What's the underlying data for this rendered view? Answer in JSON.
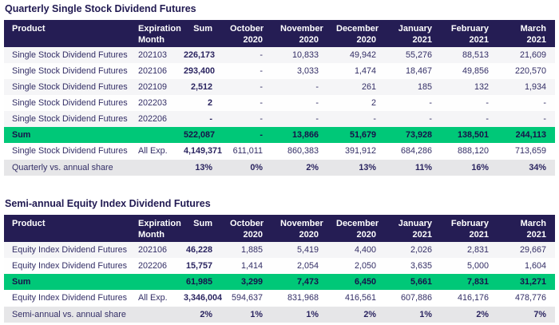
{
  "colors": {
    "header_bg": "#251d54",
    "header_text": "#ffffff",
    "sum_row_bg": "#00c878",
    "body_text": "#332e66",
    "title_text": "#211a52",
    "stripe_bg": "#f5f5f7",
    "share_row_bg": "#e6e6e8"
  },
  "tables": [
    {
      "title": "Quarterly Single Stock Dividend Futures",
      "columns": [
        "Product",
        "Expiration\nMonth",
        "Sum",
        "October\n2020",
        "November\n2020",
        "December\n2020",
        "January\n2021",
        "February\n2021",
        "March\n2021"
      ],
      "rows": [
        {
          "type": "data",
          "cells": [
            "Single Stock Dividend Futures",
            "202103",
            "226,173",
            "-",
            "10,833",
            "49,942",
            "55,276",
            "88,513",
            "21,609"
          ]
        },
        {
          "type": "data",
          "cells": [
            "Single Stock Dividend Futures",
            "202106",
            "293,400",
            "-",
            "3,033",
            "1,474",
            "18,467",
            "49,856",
            "220,570"
          ]
        },
        {
          "type": "data",
          "cells": [
            "Single Stock Dividend Futures",
            "202109",
            "2,512",
            "-",
            "-",
            "261",
            "185",
            "132",
            "1,934"
          ]
        },
        {
          "type": "data",
          "cells": [
            "Single Stock Dividend Futures",
            "202203",
            "2",
            "-",
            "-",
            "2",
            "-",
            "-",
            "-"
          ]
        },
        {
          "type": "data",
          "cells": [
            "Single Stock Dividend Futures",
            "202206",
            "-",
            "-",
            "-",
            "-",
            "-",
            "-",
            "-"
          ]
        },
        {
          "type": "sum",
          "cells": [
            "Sum",
            "",
            "522,087",
            "-",
            "13,866",
            "51,679",
            "73,928",
            "138,501",
            "244,113"
          ]
        },
        {
          "type": "total",
          "cells": [
            "Single Stock Dividend Futures",
            "All Exp.",
            "4,149,371",
            "611,011",
            "860,383",
            "391,912",
            "684,286",
            "888,120",
            "713,659"
          ]
        },
        {
          "type": "share",
          "cells": [
            "Quarterly vs. annual share",
            "",
            "13%",
            "0%",
            "2%",
            "13%",
            "11%",
            "16%",
            "34%"
          ]
        }
      ]
    },
    {
      "title": "Semi-annual Equity Index Dividend Futures",
      "columns": [
        "Product",
        "Expiration\nMonth",
        "Sum",
        "October\n2020",
        "November\n2020",
        "December\n2020",
        "January\n2021",
        "February\n2021",
        "March\n2021"
      ],
      "rows": [
        {
          "type": "data",
          "cells": [
            "Equity Index Dividend Futures",
            "202106",
            "46,228",
            "1,885",
            "5,419",
            "4,400",
            "2,026",
            "2,831",
            "29,667"
          ]
        },
        {
          "type": "data",
          "cells": [
            "Equity Index Dividend Futures",
            "202206",
            "15,757",
            "1,414",
            "2,054",
            "2,050",
            "3,635",
            "5,000",
            "1,604"
          ]
        },
        {
          "type": "sum",
          "cells": [
            "Sum",
            "",
            "61,985",
            "3,299",
            "7,473",
            "6,450",
            "5,661",
            "7,831",
            "31,271"
          ]
        },
        {
          "type": "total",
          "cells": [
            "Equity Index Dividend Futures",
            "All Exp.",
            "3,346,004",
            "594,637",
            "831,968",
            "416,561",
            "607,886",
            "416,176",
            "478,776"
          ]
        },
        {
          "type": "share",
          "cells": [
            "Semi-annual vs. annual share",
            "",
            "2%",
            "1%",
            "1%",
            "2%",
            "1%",
            "2%",
            "7%"
          ]
        }
      ]
    }
  ]
}
